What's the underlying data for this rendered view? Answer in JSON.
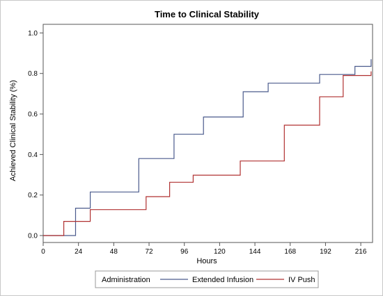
{
  "chart_data": {
    "type": "line",
    "step": true,
    "title": "Time to Clinical Stability",
    "xlabel": "Hours",
    "ylabel": "Achieved Clinical Stability (%)",
    "xlim": [
      0,
      224
    ],
    "ylim": [
      0,
      1.1
    ],
    "x_ticks": [
      0,
      24,
      48,
      72,
      96,
      120,
      144,
      168,
      192,
      216
    ],
    "y_ticks": [
      0.0,
      0.2,
      0.4,
      0.6,
      0.8,
      1.0
    ],
    "y_tick_labels": [
      "0.0",
      "0.2",
      "0.4",
      "0.6",
      "0.8",
      "1.0"
    ],
    "grid": false,
    "legend": {
      "title": "Administration",
      "placement": "bottom"
    },
    "series": [
      {
        "name": "Extended Infusion",
        "color": "#4a5a8c",
        "x": [
          0,
          22,
          32,
          65,
          89,
          109,
          136,
          153,
          188,
          212,
          223
        ],
        "y": [
          0,
          0.135,
          0.215,
          0.38,
          0.5,
          0.585,
          0.71,
          0.752,
          0.795,
          0.835,
          0.87
        ]
      },
      {
        "name": "IV Push",
        "color": "#b03030",
        "x": [
          0,
          14,
          32,
          70,
          86,
          102,
          134,
          164,
          188,
          204,
          223
        ],
        "y": [
          0,
          0.07,
          0.128,
          0.192,
          0.263,
          0.298,
          0.368,
          0.545,
          0.685,
          0.79,
          0.81
        ]
      }
    ]
  }
}
